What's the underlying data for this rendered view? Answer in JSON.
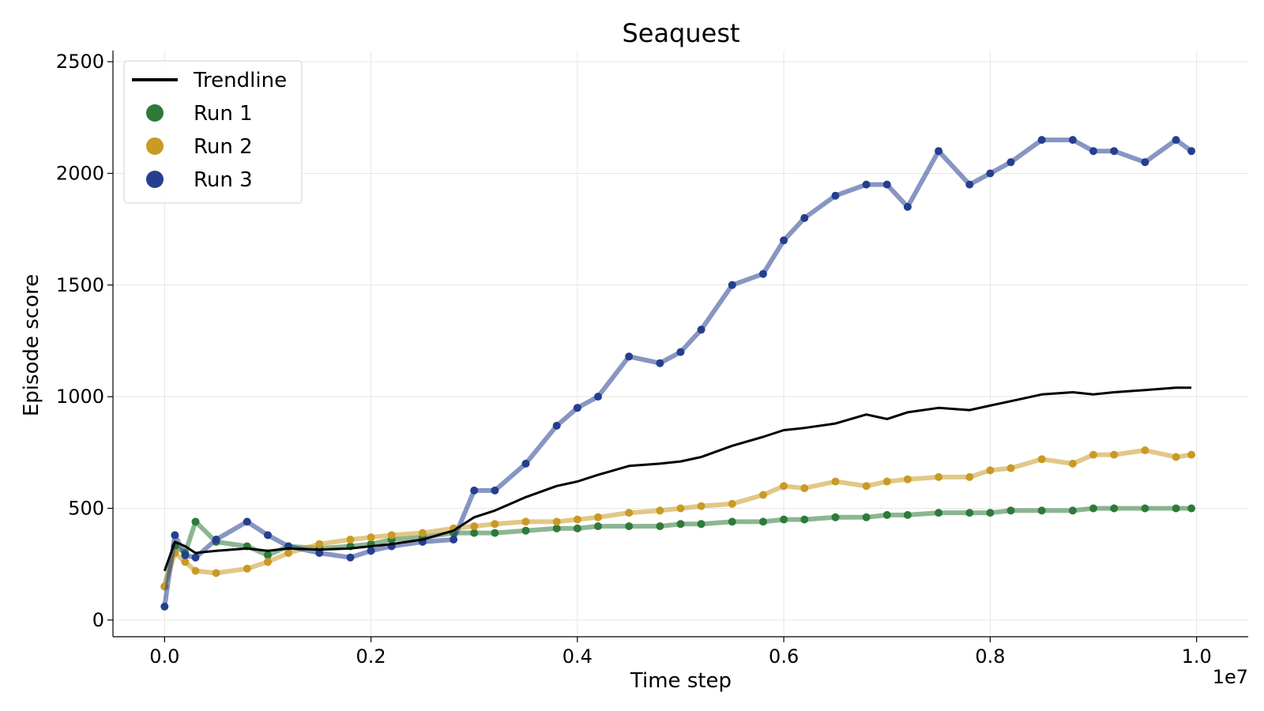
{
  "chart_data": {
    "type": "scatter",
    "title": "Seaquest",
    "xlabel": "Time step",
    "ylabel": "Episode score",
    "x_offset_label": "1e7",
    "xlim": [
      -0.05,
      1.05
    ],
    "ylim": [
      -75,
      2550
    ],
    "xticks": [
      0.0,
      0.2,
      0.4,
      0.6,
      0.8,
      1.0
    ],
    "xtick_labels": [
      "0.0",
      "0.2",
      "0.4",
      "0.6",
      "0.8",
      "1.0"
    ],
    "yticks": [
      0,
      500,
      1000,
      1500,
      2000,
      2500
    ],
    "ytick_labels": [
      "0",
      "500",
      "1000",
      "1500",
      "2000",
      "2500"
    ],
    "grid": true,
    "legend_position": "top-left",
    "series": [
      {
        "name": "Trendline",
        "kind": "line",
        "color": "#000000",
        "x": [
          0.0,
          0.01,
          0.02,
          0.03,
          0.05,
          0.08,
          0.1,
          0.12,
          0.15,
          0.18,
          0.2,
          0.22,
          0.25,
          0.28,
          0.3,
          0.32,
          0.35,
          0.38,
          0.4,
          0.42,
          0.45,
          0.48,
          0.5,
          0.52,
          0.55,
          0.58,
          0.6,
          0.62,
          0.65,
          0.68,
          0.7,
          0.72,
          0.75,
          0.78,
          0.8,
          0.82,
          0.85,
          0.88,
          0.9,
          0.92,
          0.95,
          0.98,
          0.995
        ],
        "y": [
          220,
          350,
          330,
          300,
          310,
          320,
          310,
          320,
          315,
          320,
          330,
          340,
          360,
          400,
          460,
          490,
          550,
          600,
          620,
          650,
          690,
          700,
          710,
          730,
          780,
          820,
          850,
          860,
          880,
          920,
          900,
          930,
          950,
          940,
          960,
          980,
          1010,
          1020,
          1010,
          1020,
          1030,
          1040,
          1040
        ]
      },
      {
        "name": "Run 1",
        "kind": "scatter",
        "color": "#2e7a3a",
        "x": [
          0.0,
          0.01,
          0.02,
          0.03,
          0.05,
          0.08,
          0.1,
          0.12,
          0.15,
          0.18,
          0.2,
          0.22,
          0.25,
          0.28,
          0.3,
          0.32,
          0.35,
          0.38,
          0.4,
          0.42,
          0.45,
          0.48,
          0.5,
          0.52,
          0.55,
          0.58,
          0.6,
          0.62,
          0.65,
          0.68,
          0.7,
          0.72,
          0.75,
          0.78,
          0.8,
          0.82,
          0.85,
          0.88,
          0.9,
          0.92,
          0.95,
          0.98,
          0.995
        ],
        "y": [
          150,
          330,
          300,
          440,
          350,
          330,
          290,
          330,
          320,
          330,
          340,
          360,
          370,
          390,
          390,
          390,
          400,
          410,
          410,
          420,
          420,
          420,
          430,
          430,
          440,
          440,
          450,
          450,
          460,
          460,
          470,
          470,
          480,
          480,
          480,
          490,
          490,
          490,
          500,
          500,
          500,
          500,
          500
        ]
      },
      {
        "name": "Run 2",
        "kind": "scatter",
        "color": "#c99a24",
        "x": [
          0.0,
          0.01,
          0.02,
          0.03,
          0.05,
          0.08,
          0.1,
          0.12,
          0.15,
          0.18,
          0.2,
          0.22,
          0.25,
          0.28,
          0.3,
          0.32,
          0.35,
          0.38,
          0.4,
          0.42,
          0.45,
          0.48,
          0.5,
          0.52,
          0.55,
          0.58,
          0.6,
          0.62,
          0.65,
          0.68,
          0.7,
          0.72,
          0.75,
          0.78,
          0.8,
          0.82,
          0.85,
          0.88,
          0.9,
          0.92,
          0.95,
          0.98,
          0.995
        ],
        "y": [
          150,
          300,
          260,
          220,
          210,
          230,
          260,
          300,
          340,
          360,
          370,
          380,
          390,
          410,
          420,
          430,
          440,
          440,
          450,
          460,
          480,
          490,
          500,
          510,
          520,
          560,
          600,
          590,
          620,
          600,
          620,
          630,
          640,
          640,
          670,
          680,
          720,
          700,
          740,
          740,
          760,
          730,
          740
        ]
      },
      {
        "name": "Run 3",
        "kind": "scatter",
        "color": "#253f8f",
        "x": [
          0.0,
          0.01,
          0.02,
          0.03,
          0.05,
          0.08,
          0.1,
          0.12,
          0.15,
          0.18,
          0.2,
          0.22,
          0.25,
          0.28,
          0.3,
          0.32,
          0.35,
          0.38,
          0.4,
          0.42,
          0.45,
          0.48,
          0.5,
          0.52,
          0.55,
          0.58,
          0.6,
          0.62,
          0.65,
          0.68,
          0.7,
          0.72,
          0.75,
          0.78,
          0.8,
          0.82,
          0.85,
          0.88,
          0.9,
          0.92,
          0.95,
          0.98,
          0.995
        ],
        "y": [
          60,
          380,
          290,
          280,
          360,
          440,
          380,
          330,
          300,
          280,
          310,
          330,
          350,
          360,
          580,
          580,
          700,
          870,
          950,
          1000,
          1180,
          1150,
          1200,
          1300,
          1500,
          1550,
          1700,
          1800,
          1900,
          1950,
          1950,
          1850,
          2100,
          1950,
          2000,
          2050,
          2150,
          2150,
          2100,
          2100,
          2050,
          2150,
          2100
        ]
      }
    ]
  }
}
